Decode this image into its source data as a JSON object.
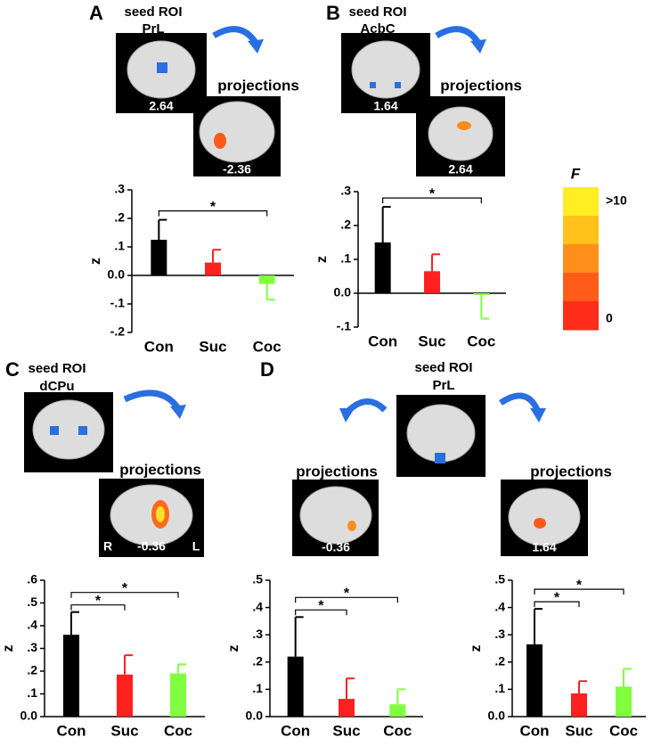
{
  "panels": [
    {
      "letter": "A",
      "seed": "seed ROI",
      "region": "PrL",
      "seed_coord": "2.64",
      "projection_label": "projections",
      "projection_coord": "-2.36"
    },
    {
      "letter": "B",
      "seed": "seed ROI",
      "region": "AcbC",
      "seed_coord": "1.64",
      "projection_label": "projections",
      "projection_coord": "2.64"
    },
    {
      "letter": "C",
      "seed": "seed ROI",
      "region": "dCPu",
      "projection_label": "projections",
      "projection_coord": "-0.36",
      "right_label": "R",
      "left_label": "L"
    },
    {
      "letter": "D",
      "seed": "seed ROI",
      "region": "PrL",
      "projection_labels": [
        "projections",
        "projections"
      ],
      "projection_coords": [
        "-0.36",
        "1.64"
      ]
    }
  ],
  "colorbar": {
    "title": "F",
    "max_label": ">10",
    "min_label": "0",
    "colors": [
      "#ffee22",
      "#ffc21a",
      "#ff8f1a",
      "#ff5c1a",
      "#ff2d1a"
    ]
  },
  "chart_data": [
    {
      "type": "bar",
      "ylabel": "z",
      "categories": [
        "Con",
        "Suc",
        "Coc"
      ],
      "colors": [
        "#000000",
        "#ff2020",
        "#80ff40"
      ],
      "values": [
        0.125,
        0.045,
        -0.03
      ],
      "errors": [
        0.07,
        0.045,
        0.055
      ],
      "ylim": [
        -0.2,
        0.3
      ],
      "yticks": [
        {
          "value": 0.3,
          "label": ".3"
        },
        {
          "value": 0.2,
          "label": ".2"
        },
        {
          "value": 0.1,
          "label": ".1"
        },
        {
          "value": 0,
          "label": "0.0"
        },
        {
          "value": -0.1,
          "label": "-.1"
        },
        {
          "value": -0.2,
          "label": "-.2"
        }
      ],
      "significance": [
        {
          "label": "*",
          "between": [
            "Con",
            "Coc"
          ]
        }
      ]
    },
    {
      "type": "bar",
      "ylabel": "z",
      "categories": [
        "Con",
        "Suc",
        "Coc"
      ],
      "colors": [
        "#000000",
        "#ff2020",
        "#80ff40"
      ],
      "values": [
        0.15,
        0.065,
        -0.005
      ],
      "errors": [
        0.105,
        0.05,
        0.07
      ],
      "ylim": [
        -0.1,
        0.3
      ],
      "yticks": [
        {
          "value": 0.3,
          "label": ".3"
        },
        {
          "value": 0.2,
          "label": ".2"
        },
        {
          "value": 0.1,
          "label": ".1"
        },
        {
          "value": 0,
          "label": "0.0"
        },
        {
          "value": -0.1,
          "label": "-.1"
        }
      ],
      "significance": [
        {
          "label": "*",
          "between": [
            "Con",
            "Coc"
          ]
        }
      ]
    },
    {
      "type": "bar",
      "ylabel": "z",
      "categories": [
        "Con",
        "Suc",
        "Coc"
      ],
      "colors": [
        "#000000",
        "#ff2020",
        "#80ff40"
      ],
      "values": [
        0.36,
        0.185,
        0.19
      ],
      "errors": [
        0.1,
        0.085,
        0.04
      ],
      "ylim": [
        0,
        0.6
      ],
      "yticks": [
        {
          "value": 0.6,
          "label": ".6"
        },
        {
          "value": 0.5,
          "label": ".5"
        },
        {
          "value": 0.4,
          "label": ".4"
        },
        {
          "value": 0.3,
          "label": ".3"
        },
        {
          "value": 0.2,
          "label": ".2"
        },
        {
          "value": 0.1,
          "label": ".1"
        },
        {
          "value": 0,
          "label": "0.0"
        }
      ],
      "significance": [
        {
          "label": "*",
          "between": [
            "Con",
            "Suc"
          ]
        },
        {
          "label": "*",
          "between": [
            "Con",
            "Coc"
          ]
        }
      ]
    },
    {
      "type": "bar",
      "ylabel": "z",
      "categories": [
        "Con",
        "Suc",
        "Coc"
      ],
      "colors": [
        "#000000",
        "#ff2020",
        "#80ff40"
      ],
      "values": [
        0.22,
        0.065,
        0.045
      ],
      "errors": [
        0.145,
        0.075,
        0.055
      ],
      "ylim": [
        0,
        0.5
      ],
      "yticks": [
        {
          "value": 0.5,
          "label": ".5"
        },
        {
          "value": 0.4,
          "label": ".4"
        },
        {
          "value": 0.3,
          "label": ".3"
        },
        {
          "value": 0.2,
          "label": ".2"
        },
        {
          "value": 0.1,
          "label": ".1"
        },
        {
          "value": 0,
          "label": "0.0"
        }
      ],
      "significance": [
        {
          "label": "*",
          "between": [
            "Con",
            "Suc"
          ]
        },
        {
          "label": "*",
          "between": [
            "Con",
            "Coc"
          ]
        }
      ]
    },
    {
      "type": "bar",
      "ylabel": "z",
      "categories": [
        "Con",
        "Suc",
        "Coc"
      ],
      "colors": [
        "#000000",
        "#ff2020",
        "#80ff40"
      ],
      "values": [
        0.265,
        0.085,
        0.11
      ],
      "errors": [
        0.13,
        0.045,
        0.065
      ],
      "ylim": [
        0,
        0.5
      ],
      "yticks": [
        {
          "value": 0.5,
          "label": ".5"
        },
        {
          "value": 0.4,
          "label": ".4"
        },
        {
          "value": 0.3,
          "label": ".3"
        },
        {
          "value": 0.2,
          "label": ".2"
        },
        {
          "value": 0.1,
          "label": ".1"
        },
        {
          "value": 0,
          "label": "0.0"
        }
      ],
      "significance": [
        {
          "label": "*",
          "between": [
            "Con",
            "Suc"
          ]
        },
        {
          "label": "*",
          "between": [
            "Con",
            "Coc"
          ]
        }
      ]
    }
  ]
}
